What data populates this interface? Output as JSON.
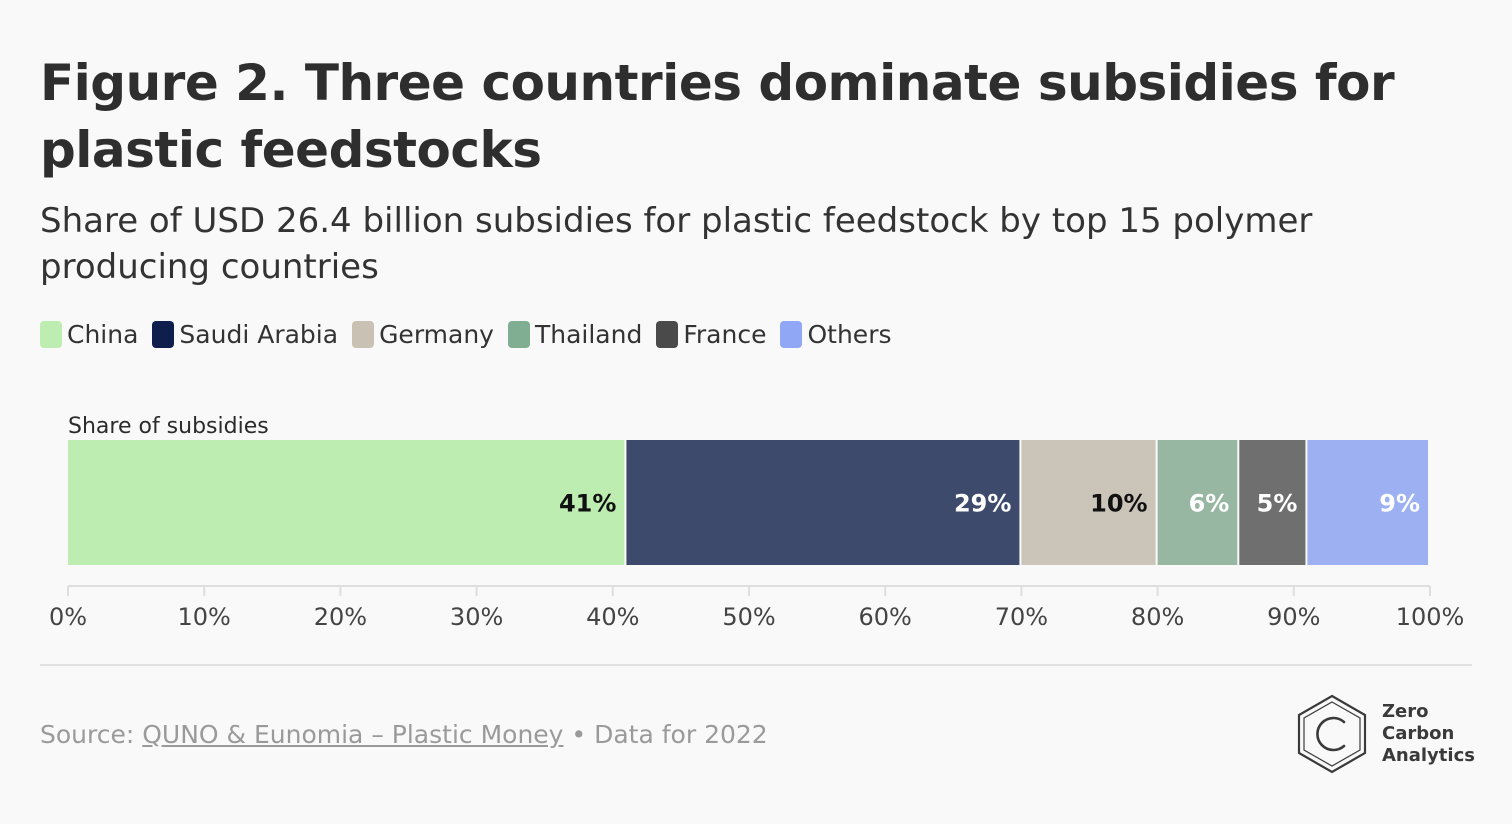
{
  "title": "Figure 2. Three countries dominate subsidies for plastic feedstocks",
  "subtitle": "Share of USD 26.4 billion subsidies for plastic feedstock by top 15 polymer producing countries",
  "legend": [
    {
      "label": "China",
      "color": "#bdedb0"
    },
    {
      "label": "Saudi Arabia",
      "color": "#0f1f4d"
    },
    {
      "label": "Germany",
      "color": "#c9c1b4"
    },
    {
      "label": "Thailand",
      "color": "#7fae92"
    },
    {
      "label": "France",
      "color": "#4a4a4a"
    },
    {
      "label": "Others",
      "color": "#8fa7f4"
    }
  ],
  "chart_data": {
    "type": "bar",
    "orientation": "horizontal-stacked",
    "categories": [
      "Share of subsidies"
    ],
    "series": [
      {
        "name": "China",
        "values": [
          41
        ],
        "label": "41%",
        "color": "#bdedb0",
        "label_color": "#111111"
      },
      {
        "name": "Saudi Arabia",
        "values": [
          29
        ],
        "label": "29%",
        "color": "#3d4a6b",
        "label_color": "#ffffff"
      },
      {
        "name": "Germany",
        "values": [
          10
        ],
        "label": "10%",
        "color": "#cbc4b8",
        "label_color": "#111111"
      },
      {
        "name": "Thailand",
        "values": [
          6
        ],
        "label": "6%",
        "color": "#97b7a3",
        "label_color": "#ffffff"
      },
      {
        "name": "France",
        "values": [
          5
        ],
        "label": "5%",
        "color": "#6f6f6f",
        "label_color": "#ffffff"
      },
      {
        "name": "Others",
        "values": [
          9
        ],
        "label": "9%",
        "color": "#9cb0f2",
        "label_color": "#ffffff"
      }
    ],
    "xlim": [
      0,
      100
    ],
    "xticks": [
      "0%",
      "10%",
      "20%",
      "30%",
      "40%",
      "50%",
      "60%",
      "70%",
      "80%",
      "90%",
      "100%"
    ],
    "grid": false
  },
  "footer": {
    "source_prefix": "Source: ",
    "source_link": "QUNO & Eunomia – Plastic Money",
    "source_suffix": " • Data for 2022"
  },
  "logo": {
    "line1": "Zero",
    "line2": "Carbon",
    "line3": "Analytics"
  }
}
